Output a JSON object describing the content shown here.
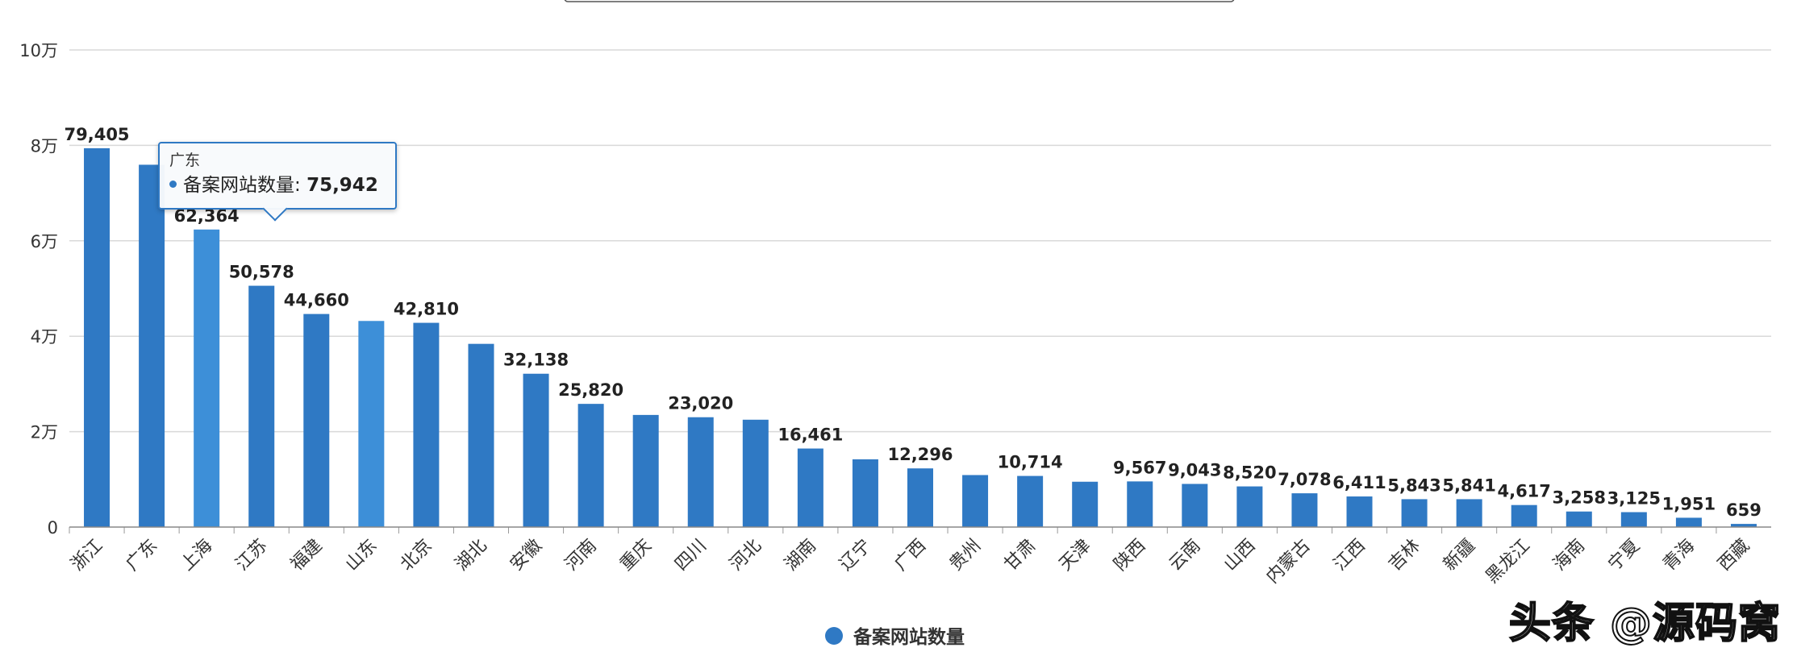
{
  "chart_data": {
    "type": "bar",
    "categories": [
      "浙江",
      "广东",
      "上海",
      "江苏",
      "福建",
      "山东",
      "北京",
      "湖北",
      "安徽",
      "河南",
      "重庆",
      "四川",
      "河北",
      "湖南",
      "辽宁",
      "广西",
      "贵州",
      "甘肃",
      "天津",
      "陕西",
      "云南",
      "山西",
      "内蒙古",
      "江西",
      "吉林",
      "新疆",
      "黑龙江",
      "海南",
      "宁夏",
      "青海",
      "西藏"
    ],
    "series": [
      {
        "name": "备案网站数量",
        "values": [
          79405,
          75942,
          62364,
          50578,
          44660,
          43200,
          42810,
          38400,
          32138,
          25820,
          23500,
          23020,
          22500,
          16461,
          14200,
          12296,
          10900,
          10714,
          9500,
          9567,
          9043,
          8520,
          7078,
          6411,
          5843,
          5841,
          4617,
          3258,
          3125,
          1951,
          659
        ]
      }
    ],
    "data_labels": [
      "79,405",
      "",
      "62,364",
      "50,578",
      "44,660",
      "",
      "42,810",
      "",
      "32,138",
      "25,820",
      "",
      "23,020",
      "",
      "16,461",
      "",
      "12,296",
      "",
      "10,714",
      "",
      "9,567",
      "9,043",
      "8,520",
      "7,078",
      "6,411",
      "5,843",
      "5,841",
      "4,617",
      "3,258",
      "3,125",
      "1,951",
      "659"
    ],
    "y_ticks": [
      0,
      20000,
      40000,
      60000,
      80000,
      100000
    ],
    "y_tick_labels": [
      "0",
      "2万",
      "4万",
      "6万",
      "8万",
      "10万"
    ],
    "ylim": [
      0,
      100000
    ],
    "grid": true,
    "legend": {
      "position": "bottom",
      "label": "备案网站数量"
    },
    "bar_colors": {
      "default": "#2f79c4",
      "highlight": "#3d8fd8"
    },
    "highlighted_indices": [
      2,
      5
    ],
    "tooltip": {
      "title": "广东",
      "series_label": "备案网站数量",
      "value": "75,942"
    }
  },
  "watermark": "头条 @源码窝"
}
